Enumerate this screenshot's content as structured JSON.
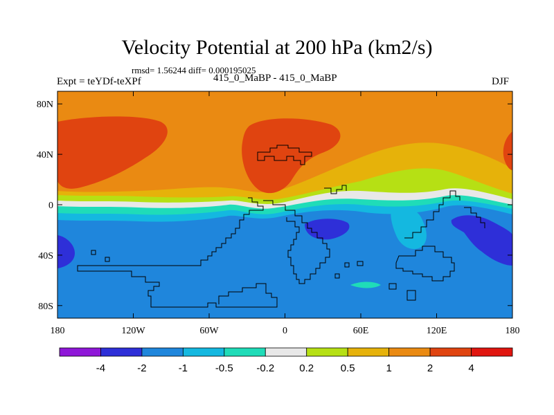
{
  "chart_data": {
    "type": "heatmap",
    "title": "Velocity Potential at 200 hPa (km2/s)",
    "stats": "rmsd= 1.56244 diff= 0.000195025",
    "left_label": "Expt = teYDf-teXPf",
    "center_label": "415_0_MaBP - 415_0_MaBP",
    "right_label": "DJF",
    "x_ticks": [
      "180",
      "120W",
      "60W",
      "0",
      "60E",
      "120E",
      "180"
    ],
    "x_tick_values": [
      -180,
      -120,
      -60,
      0,
      60,
      120,
      180
    ],
    "y_ticks": [
      "80N",
      "40N",
      "0",
      "40S",
      "80S"
    ],
    "y_tick_values": [
      80,
      40,
      0,
      -40,
      -80
    ],
    "xlim": [
      -180,
      180
    ],
    "ylim": [
      -90,
      90
    ],
    "colorbar_labels": [
      "-4",
      "-2",
      "-1",
      "-0.5",
      "-0.2",
      "0.2",
      "0.5",
      "1",
      "2",
      "4"
    ],
    "colorbar_colors": [
      "#8f17d8",
      "#2e2fd8",
      "#1f86dc",
      "#14b8e0",
      "#1fdcb8",
      "#e8e8e8",
      "#b6e014",
      "#e6b20a",
      "#ea8a12",
      "#e04410",
      "#e0150f"
    ],
    "regions": [
      {
        "name": "north-background",
        "value_class": "1 to 2",
        "color": "#ea8a12"
      },
      {
        "name": "south-background",
        "value_class": "-2 to -1",
        "color": "#1f86dc"
      },
      {
        "name": "strong-positive-nw",
        "value_class": "2 to 4",
        "color": "#e04410"
      },
      {
        "name": "strong-positive-n",
        "value_class": "2 to 4",
        "color": "#e04410"
      },
      {
        "name": "negative-minimum-se",
        "value_class": "-4 to -2",
        "color": "#2e2fd8"
      }
    ]
  }
}
